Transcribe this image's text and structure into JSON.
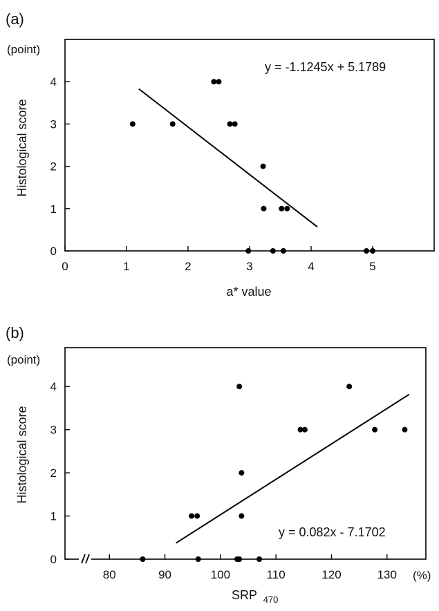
{
  "chart_data": [
    {
      "panel_label": "(a)",
      "type": "scatter",
      "xlabel": "a* value",
      "ylabel": "Histological score",
      "y_unit": "(point)",
      "x_unit": "",
      "xlim": [
        0,
        6
      ],
      "ylim": [
        0,
        5
      ],
      "x_ticks": [
        0,
        1,
        2,
        3,
        4,
        5
      ],
      "y_ticks": [
        0,
        1,
        2,
        3,
        4
      ],
      "equation": "y = -1.1245x + 5.1789",
      "trendline": {
        "slope": -1.1245,
        "intercept": 5.1789,
        "x_range": [
          1.2,
          4.1
        ]
      },
      "points": [
        {
          "x": 1.1,
          "y": 3
        },
        {
          "x": 1.75,
          "y": 3
        },
        {
          "x": 2.42,
          "y": 4
        },
        {
          "x": 2.5,
          "y": 4
        },
        {
          "x": 2.68,
          "y": 3
        },
        {
          "x": 2.76,
          "y": 3
        },
        {
          "x": 3.22,
          "y": 2
        },
        {
          "x": 3.23,
          "y": 1
        },
        {
          "x": 3.52,
          "y": 1
        },
        {
          "x": 3.61,
          "y": 1
        },
        {
          "x": 2.98,
          "y": 0
        },
        {
          "x": 3.38,
          "y": 0
        },
        {
          "x": 3.55,
          "y": 0
        },
        {
          "x": 4.9,
          "y": 0
        },
        {
          "x": 5.0,
          "y": 0
        }
      ],
      "grid": false
    },
    {
      "panel_label": "(b)",
      "type": "scatter",
      "xlabel": "SRP",
      "xlabel_subscript": "470",
      "ylabel": "Histological score",
      "y_unit": "(point)",
      "x_unit": "(%)",
      "xlim": [
        72,
        137
      ],
      "ylim": [
        0,
        4.9
      ],
      "x_ticks": [
        80,
        90,
        100,
        110,
        120,
        130
      ],
      "y_ticks": [
        0,
        1,
        2,
        3,
        4
      ],
      "axis_break": true,
      "equation": "y = 0.082x - 7.1702",
      "trendline": {
        "slope": 0.082,
        "intercept": -7.1702,
        "x_range": [
          92,
          134
        ]
      },
      "points": [
        {
          "x": 86,
          "y": 0
        },
        {
          "x": 96,
          "y": 0
        },
        {
          "x": 103,
          "y": 0
        },
        {
          "x": 103.4,
          "y": 0
        },
        {
          "x": 107,
          "y": 0
        },
        {
          "x": 94.8,
          "y": 1
        },
        {
          "x": 95.8,
          "y": 1
        },
        {
          "x": 103.8,
          "y": 1
        },
        {
          "x": 103.8,
          "y": 2
        },
        {
          "x": 114.4,
          "y": 3
        },
        {
          "x": 115.2,
          "y": 3
        },
        {
          "x": 127.8,
          "y": 3
        },
        {
          "x": 133.2,
          "y": 3
        },
        {
          "x": 103.4,
          "y": 4
        },
        {
          "x": 123.2,
          "y": 4
        }
      ],
      "grid": false
    }
  ]
}
